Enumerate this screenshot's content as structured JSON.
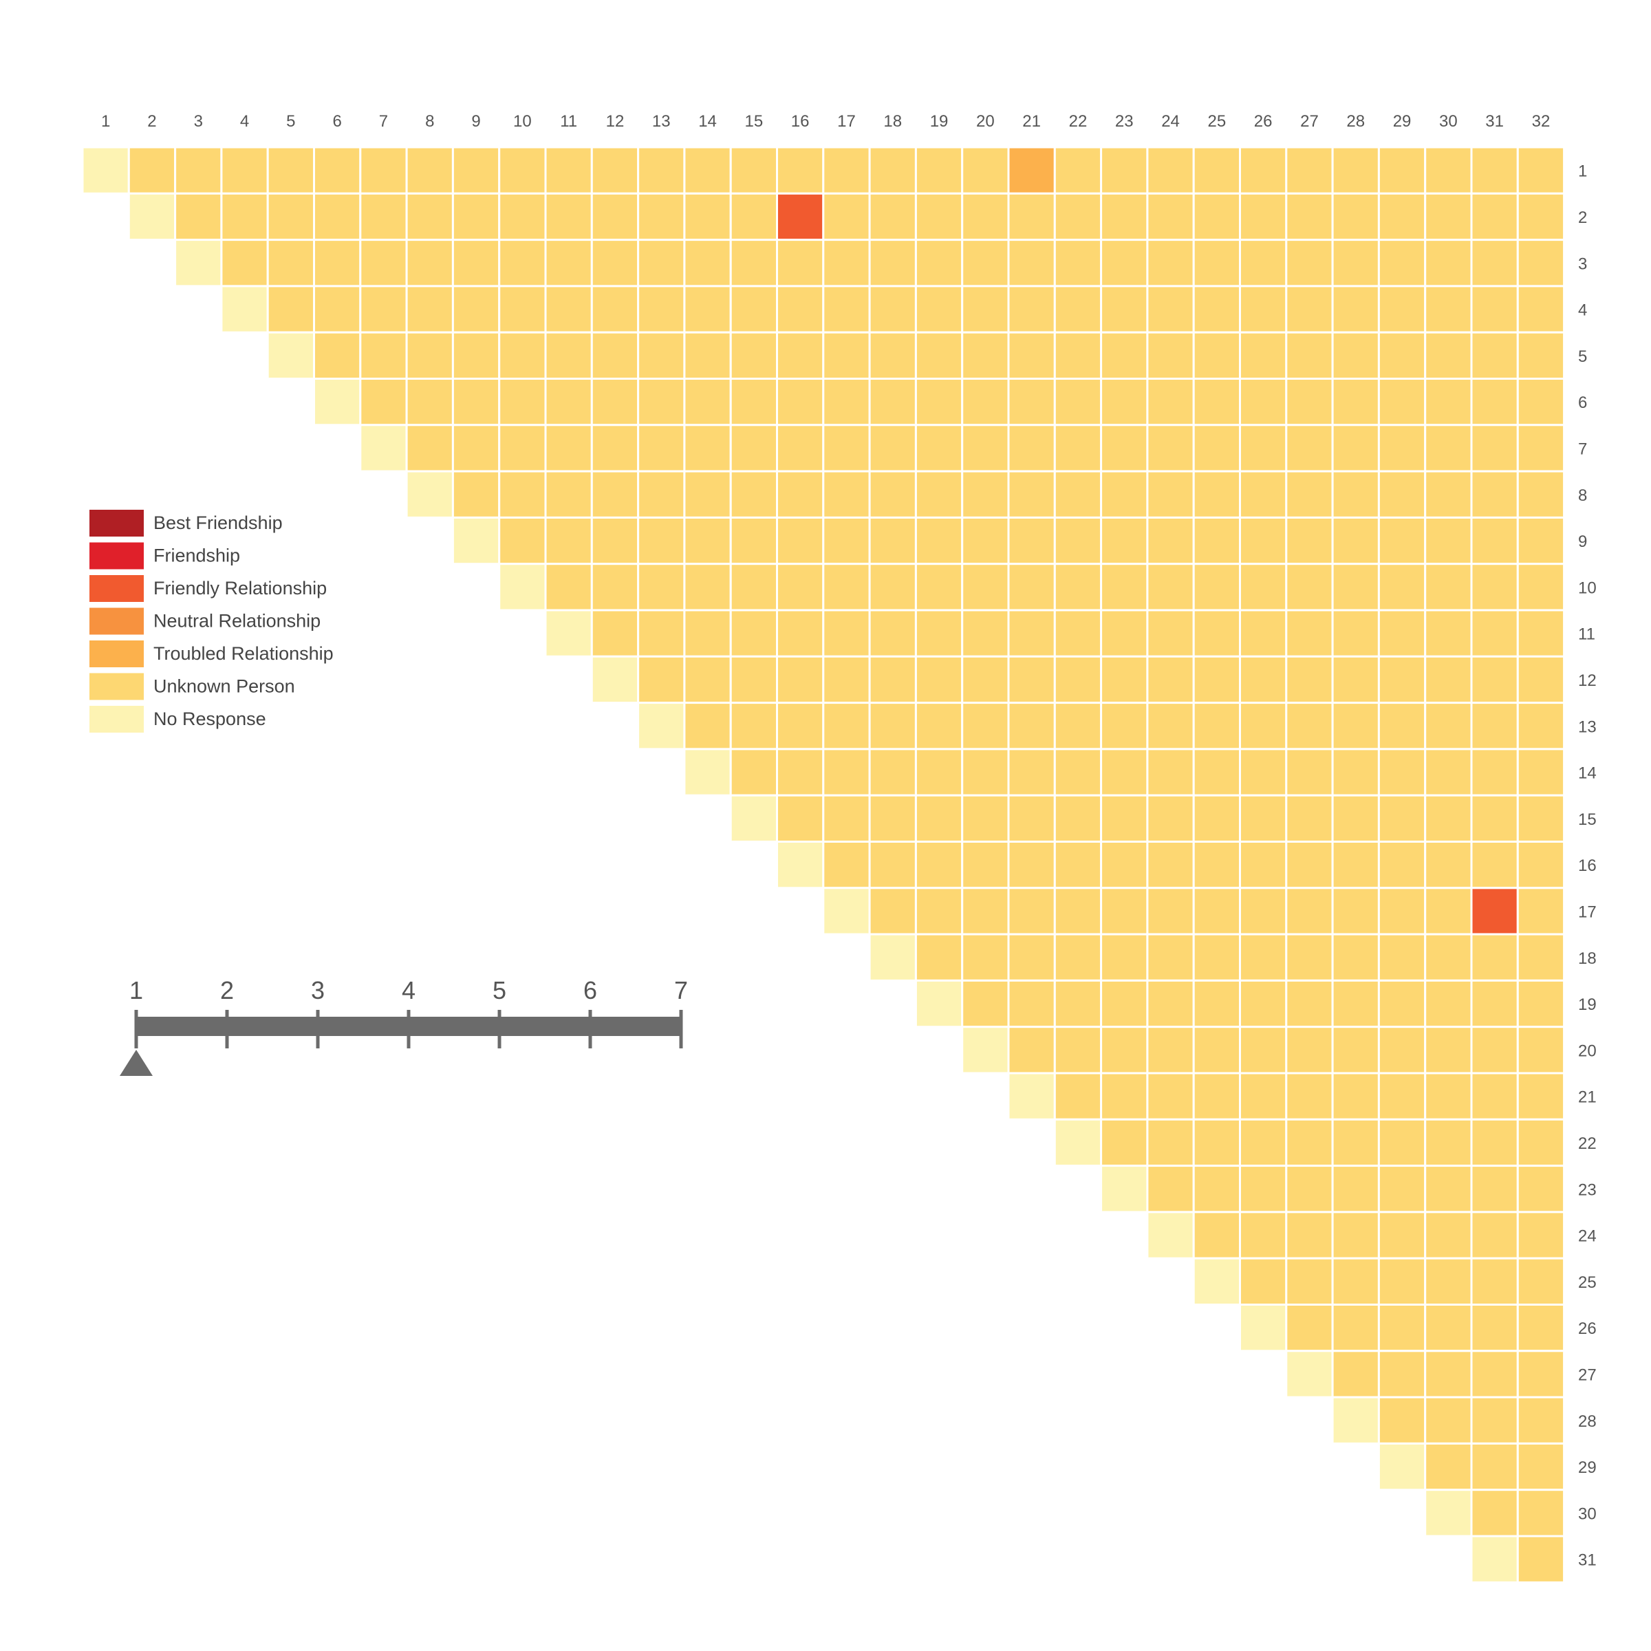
{
  "chart_data": {
    "type": "heatmap",
    "layout": "upper-triangular",
    "columns": [
      "1",
      "2",
      "3",
      "4",
      "5",
      "6",
      "7",
      "8",
      "9",
      "10",
      "11",
      "12",
      "13",
      "14",
      "15",
      "16",
      "17",
      "18",
      "19",
      "20",
      "21",
      "22",
      "23",
      "24",
      "25",
      "26",
      "27",
      "28",
      "29",
      "30",
      "31",
      "32"
    ],
    "rows": [
      "1",
      "2",
      "3",
      "4",
      "5",
      "6",
      "7",
      "8",
      "9",
      "10",
      "11",
      "12",
      "13",
      "14",
      "15",
      "16",
      "17",
      "18",
      "19",
      "20",
      "21",
      "22",
      "23",
      "24",
      "25",
      "26",
      "27",
      "28",
      "29",
      "30",
      "31"
    ],
    "default_category": "Unknown Person",
    "diagonal_category": "No Response",
    "exceptions": [
      {
        "row": 1,
        "col": 21,
        "category": "Troubled Relationship"
      },
      {
        "row": 2,
        "col": 16,
        "category": "Friendly Relationship"
      },
      {
        "row": 17,
        "col": 31,
        "category": "Friendly Relationship"
      }
    ],
    "legend": [
      {
        "label": "Best Friendship",
        "color": "#b01f24"
      },
      {
        "label": "Friendship",
        "color": "#e0202a"
      },
      {
        "label": "Friendly Relationship",
        "color": "#f15a2f"
      },
      {
        "label": "Neutral Relationship",
        "color": "#f7923f"
      },
      {
        "label": "Troubled Relationship",
        "color": "#fcb14c"
      },
      {
        "label": "Unknown Person",
        "color": "#fdd772"
      },
      {
        "label": "No Response",
        "color": "#fdf3b3"
      }
    ],
    "legend_position": "left",
    "grid_line_color": "#ffffff"
  },
  "slider": {
    "ticks": [
      "1",
      "2",
      "3",
      "4",
      "5",
      "6",
      "7"
    ],
    "value": 1,
    "min": 1,
    "max": 7,
    "color": "#6b6b6b"
  }
}
